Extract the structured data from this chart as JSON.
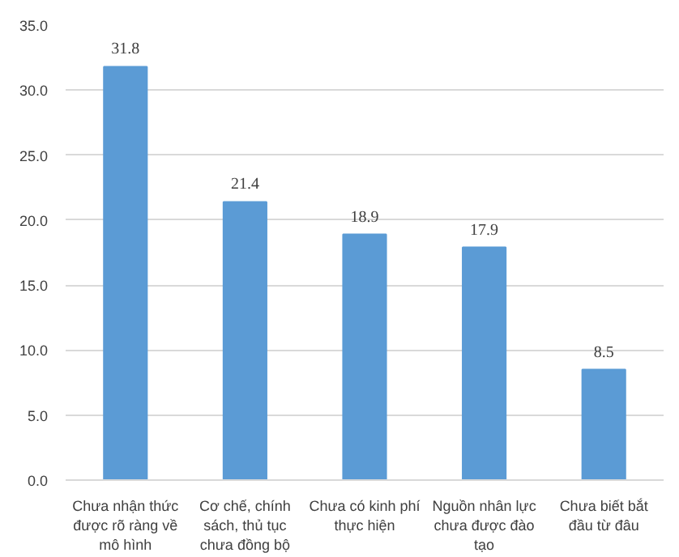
{
  "chart_data": {
    "type": "bar",
    "categories": [
      "Chưa nhận thức được rõ ràng về mô hình",
      "Cơ chế, chính sách, thủ tục chưa đồng bộ",
      "Chưa có kinh phí thực hiện",
      "Nguồn nhân lực chưa được đào tạo",
      "Chưa biết bắt đầu từ đâu"
    ],
    "values": [
      31.8,
      21.4,
      18.9,
      17.9,
      8.5
    ],
    "color": "#5b9bd5",
    "ylim": [
      0,
      35
    ],
    "yticks": [
      {
        "value": 0,
        "label": "0.0"
      },
      {
        "value": 5,
        "label": "5.0"
      },
      {
        "value": 10,
        "label": "10.0"
      },
      {
        "value": 15,
        "label": "15.0"
      },
      {
        "value": 20,
        "label": "20.0"
      },
      {
        "value": 25,
        "label": "25.0"
      },
      {
        "value": 30,
        "label": "30.0"
      },
      {
        "value": 35,
        "label": "35.0"
      }
    ],
    "grid": "y",
    "data_labels": true
  }
}
